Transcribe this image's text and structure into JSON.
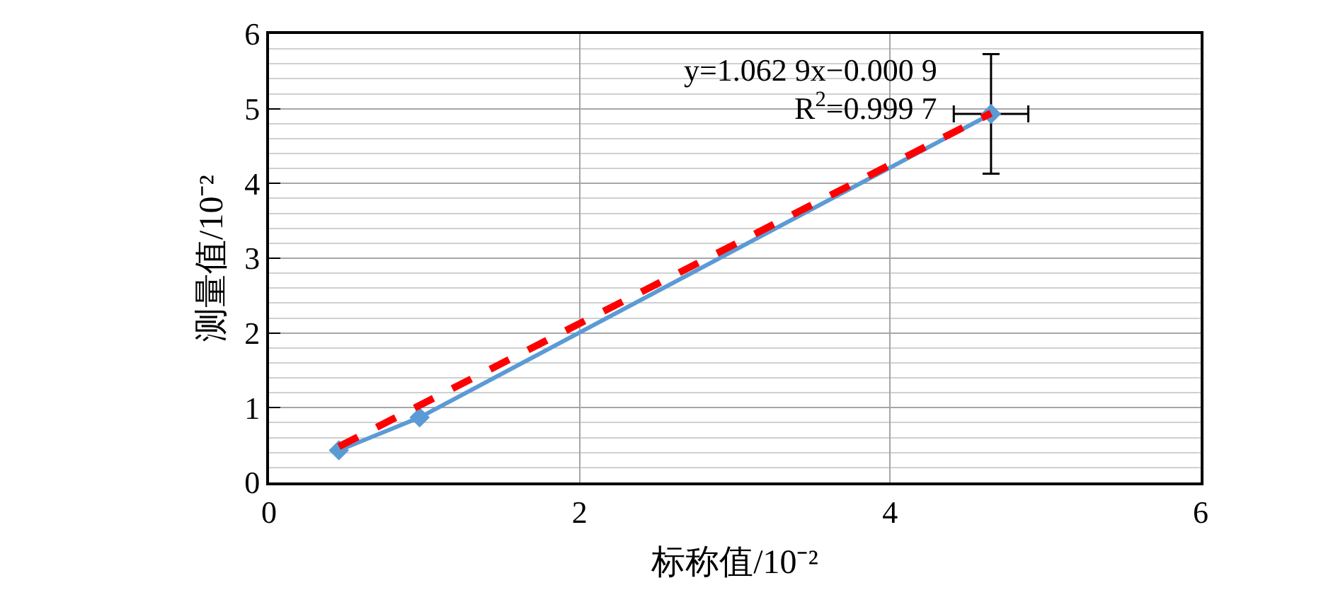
{
  "chart_data": {
    "type": "line",
    "xlabel": "标称值/10⁻²",
    "ylabel": "测量值/10⁻²",
    "x": [
      0.45,
      0.97,
      4.65
    ],
    "series": [
      {
        "color": "#5b9bd5",
        "values": [
          0.43,
          0.87,
          4.93
        ],
        "marker": "diamond",
        "line_style": "solid",
        "errors": [
          null,
          null,
          0.8
        ],
        "xerrors": [
          null,
          null,
          0.24
        ]
      },
      {
        "type": "line",
        "color": "#ff0000",
        "x": [
          0.45,
          4.65
        ],
        "values": [
          0.48,
          4.94
        ],
        "line_style": "dashed",
        "marker": "none"
      }
    ],
    "xlim": [
      0,
      6
    ],
    "ylim": [
      0,
      6
    ],
    "xticks": [
      0,
      2,
      4,
      6
    ],
    "yticks": [
      0,
      1,
      2,
      3,
      4,
      5,
      6
    ],
    "grid": true,
    "annotations": [
      "y=1.062 9x−0.000 9",
      "R$^{2}$=0.999 7"
    ]
  }
}
